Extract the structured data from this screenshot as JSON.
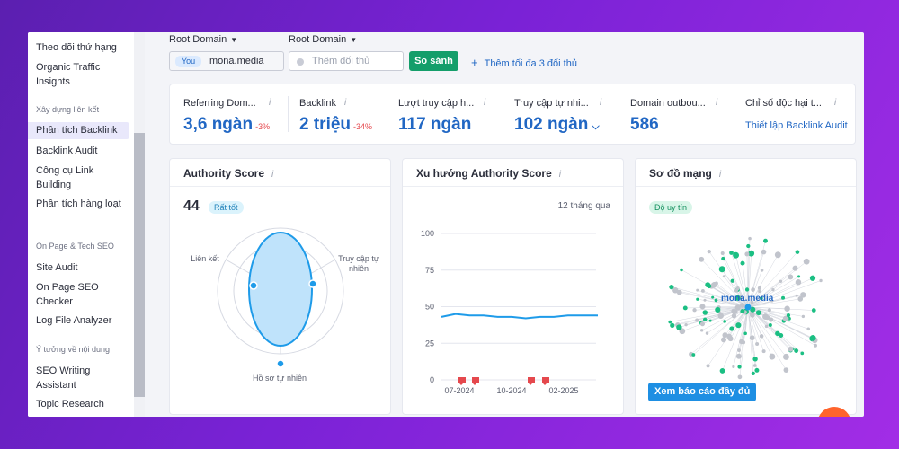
{
  "sidebar": {
    "items_top": [
      "Theo dõi thứ hạng",
      "Organic Traffic Insights"
    ],
    "section_backlinks": "Xây dựng liên kết",
    "backlink_items": [
      "Phân tích Backlink",
      "Backlink Audit",
      "Công cụ Link Building",
      "Phân tích hàng loạt"
    ],
    "section_onpage": "On Page & Tech SEO",
    "onpage_items": [
      "Site Audit",
      "On Page SEO Checker",
      "Log File Analyzer"
    ],
    "section_content": "Ý tưởng về nội dung",
    "content_items": [
      "SEO Writing Assistant",
      "Topic Research"
    ]
  },
  "filters": {
    "root_domain_label_1": "Root Domain",
    "root_domain_label_2": "Root Domain",
    "you_tag": "You",
    "domain_value": "mona.media",
    "competitor_placeholder": "Thêm đối thủ",
    "compare_button": "So sánh",
    "add_competitors": "Thêm tối đa 3 đối thủ"
  },
  "metrics": [
    {
      "label": "Referring Dom...",
      "value": "3,6 ngàn",
      "delta": "-3%"
    },
    {
      "label": "Backlink",
      "value": "2 triệu",
      "delta": "-34%"
    },
    {
      "label": "Lượt truy cập h...",
      "value": "117 ngàn",
      "delta": ""
    },
    {
      "label": "Truy cập tự nhi...",
      "value": "102 ngàn",
      "delta": ""
    },
    {
      "label": "Domain outbou...",
      "value": "586",
      "delta": ""
    },
    {
      "label": "Chỉ số độc hại t...",
      "link": "Thiết lập Backlink Audit"
    }
  ],
  "info_glyph": "i",
  "authority_card": {
    "title": "Authority Score",
    "score": "44",
    "badge": "Rất tốt",
    "axis_links": "Liên kết",
    "axis_traffic": "Truy cập tự nhiên",
    "axis_profile": "Hồ sơ tự nhiên"
  },
  "trend_card": {
    "title": "Xu hướng Authority Score",
    "period": "12 tháng qua"
  },
  "network_card": {
    "title": "Sơ đồ mạng",
    "badge": "Độ uy tín",
    "center_label": "mona.media",
    "button": "Xem báo cáo đầy đủ"
  },
  "chart_data": {
    "type": "line",
    "title": "Xu hướng Authority Score",
    "x_tick_labels": [
      "07-2024",
      "10-2024",
      "02-2025"
    ],
    "y_ticks": [
      0,
      25,
      50,
      75,
      100
    ],
    "ylim": [
      0,
      100
    ],
    "series": [
      {
        "values": [
          43,
          45,
          44,
          44,
          43,
          43,
          42,
          43,
          43,
          44,
          44,
          44
        ]
      }
    ],
    "event_marker_count": 4,
    "grid": true
  },
  "colors": {
    "accent": "#2167c4",
    "negative": "#e5484d",
    "compare": "#149e6a",
    "line": "#1e9be9",
    "radar_fill": "#bfe3fb",
    "marker": "#e5484d",
    "badge_good_bg": "#dbf3fc",
    "badge_good_fg": "#1b7fb8",
    "badge_auth_bg": "#d8f5e8",
    "badge_auth_fg": "#13905e",
    "fab": "#ff642d"
  }
}
